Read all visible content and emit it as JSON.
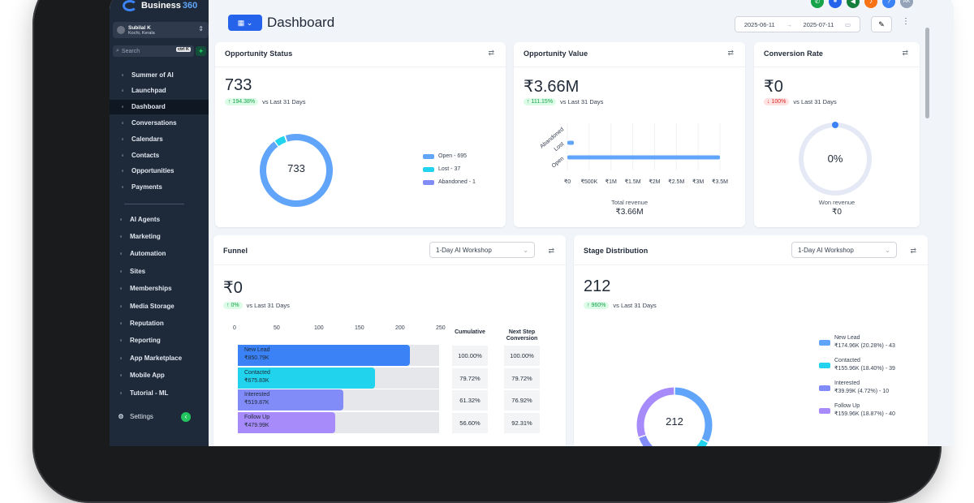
{
  "brand": {
    "name": "Business",
    "accent": "360"
  },
  "user": {
    "name": "Subilal K",
    "location": "Kochi, Kerala"
  },
  "search": {
    "placeholder": "Search",
    "shortcut": "ctrl K"
  },
  "nav": [
    {
      "label": "Summer of AI",
      "icon": "sparkle-icon"
    },
    {
      "label": "Launchpad",
      "icon": "rocket-icon"
    },
    {
      "label": "Dashboard",
      "icon": "grid-icon",
      "active": true
    },
    {
      "label": "Conversations",
      "icon": "chat-icon"
    },
    {
      "label": "Calendars",
      "icon": "calendar-icon"
    },
    {
      "label": "Contacts",
      "icon": "contacts-icon"
    },
    {
      "label": "Opportunities",
      "icon": "opportunities-icon"
    },
    {
      "label": "Payments",
      "icon": "payments-icon"
    }
  ],
  "nav2": [
    {
      "label": "AI Agents",
      "icon": "ai-agents-icon"
    },
    {
      "label": "Marketing",
      "icon": "send-icon"
    },
    {
      "label": "Automation",
      "icon": "automation-icon"
    },
    {
      "label": "Sites",
      "icon": "sites-icon"
    },
    {
      "label": "Memberships",
      "icon": "memberships-icon"
    },
    {
      "label": "Media Storage",
      "icon": "image-icon"
    },
    {
      "label": "Reputation",
      "icon": "star-icon"
    },
    {
      "label": "Reporting",
      "icon": "trend-icon"
    },
    {
      "label": "App Marketplace",
      "icon": "marketplace-icon"
    },
    {
      "label": "Mobile App",
      "icon": "mobile-icon"
    },
    {
      "label": "Tutorial - ML",
      "icon": "youtube-icon"
    }
  ],
  "settings_label": "Settings",
  "top_icons": [
    {
      "name": "phone-icon",
      "color": "#16a34a",
      "glyph": "✆"
    },
    {
      "name": "link-icon",
      "color": "#2563eb",
      "glyph": "⚭"
    },
    {
      "name": "megaphone-icon",
      "color": "#15803d",
      "glyph": "◀"
    },
    {
      "name": "bell-icon",
      "color": "#f97316",
      "glyph": "♪"
    },
    {
      "name": "help-icon",
      "color": "#3b82f6",
      "glyph": "?"
    },
    {
      "name": "avatar-icon",
      "color": "#94a3b8",
      "glyph": "AK"
    }
  ],
  "page_title": "Dashboard",
  "date_range": {
    "start": "2025-06-11",
    "end": "2025-07-11"
  },
  "opportunity_status": {
    "title": "Opportunity Status",
    "value": "733",
    "delta": "↑ 194.38%",
    "compare": "vs Last 31 Days",
    "center": "733",
    "legend": [
      "Open - 695",
      "Lost - 37",
      "Abandoned - 1"
    ]
  },
  "opportunity_value": {
    "title": "Opportunity Value",
    "value": "₹3.66M",
    "delta": "↑ 111.15%",
    "compare": "vs Last 31 Days",
    "categories": [
      "Abandoned",
      "Lost",
      "Open"
    ],
    "ticks": [
      "₹0",
      "₹500K",
      "₹1M",
      "₹1.5M",
      "₹2M",
      "₹2.5M",
      "₹3M",
      "₹3.5M"
    ],
    "footer_label": "Total revenue",
    "footer_value": "₹3.66M"
  },
  "conversion_rate": {
    "title": "Conversion Rate",
    "value": "₹0",
    "delta": "↓ 100%",
    "compare": "vs Last 31 Days",
    "center": "0%",
    "footer_label": "Won revenue",
    "footer_value": "₹0"
  },
  "funnel": {
    "title": "Funnel",
    "select": "1-Day AI Workshop",
    "value": "₹0",
    "delta": "↑ 0%",
    "compare": "vs Last 31 Days",
    "ticks": [
      "0",
      "50",
      "100",
      "150",
      "200",
      "250"
    ],
    "col_cumulative": "Cumulative",
    "col_next": "Next Step Conversion",
    "rows": [
      {
        "stage": "New Lead",
        "amount": "₹850.79K",
        "cumulative": "100.00%",
        "next": "100.00%"
      },
      {
        "stage": "Contacted",
        "amount": "₹675.83K",
        "cumulative": "79.72%",
        "next": "79.72%"
      },
      {
        "stage": "Interested",
        "amount": "₹519.87K",
        "cumulative": "61.32%",
        "next": "76.92%"
      },
      {
        "stage": "Follow Up",
        "amount": "₹479.99K",
        "cumulative": "56.60%",
        "next": "92.31%"
      }
    ]
  },
  "stage_distribution": {
    "title": "Stage Distribution",
    "select": "1-Day AI Workshop",
    "value": "212",
    "delta": "↑ 960%",
    "compare": "vs Last 31 Days",
    "center": "212",
    "legend": [
      {
        "name": "New Lead",
        "detail": "₹174.96K (20.28%) - 43"
      },
      {
        "name": "Contacted",
        "detail": "₹155.96K (18.40%) - 39"
      },
      {
        "name": "Interested",
        "detail": "₹39.99K (4.72%) - 10"
      },
      {
        "name": "Follow Up",
        "detail": "₹159.96K (18.87%) - 40"
      }
    ]
  },
  "chart_data": [
    {
      "type": "pie",
      "title": "Opportunity Status",
      "categories": [
        "Open",
        "Lost",
        "Abandoned"
      ],
      "values": [
        695,
        37,
        1
      ],
      "colors": [
        "#60a5fa",
        "#22d3ee",
        "#818cf8"
      ]
    },
    {
      "type": "bar",
      "title": "Opportunity Value",
      "orientation": "horizontal",
      "categories": [
        "Abandoned",
        "Lost",
        "Open"
      ],
      "values": [
        0,
        120000,
        3540000
      ],
      "xlim": [
        0,
        3500000
      ],
      "xlabel": "Total revenue"
    },
    {
      "type": "pie",
      "title": "Conversion Rate",
      "categories": [
        "Won"
      ],
      "values": [
        0
      ]
    },
    {
      "type": "bar",
      "title": "Funnel",
      "orientation": "horizontal",
      "categories": [
        "New Lead",
        "Contacted",
        "Interested",
        "Follow Up"
      ],
      "values": [
        212,
        169,
        130,
        120
      ],
      "xlim": [
        0,
        250
      ],
      "colors": [
        "#3b82f6",
        "#22d3ee",
        "#818cf8",
        "#a78bfa"
      ]
    },
    {
      "type": "pie",
      "title": "Stage Distribution",
      "categories": [
        "New Lead",
        "Contacted",
        "Interested",
        "Follow Up"
      ],
      "values": [
        43,
        39,
        10,
        40
      ],
      "colors": [
        "#60a5fa",
        "#22d3ee",
        "#818cf8",
        "#a78bfa"
      ]
    }
  ]
}
